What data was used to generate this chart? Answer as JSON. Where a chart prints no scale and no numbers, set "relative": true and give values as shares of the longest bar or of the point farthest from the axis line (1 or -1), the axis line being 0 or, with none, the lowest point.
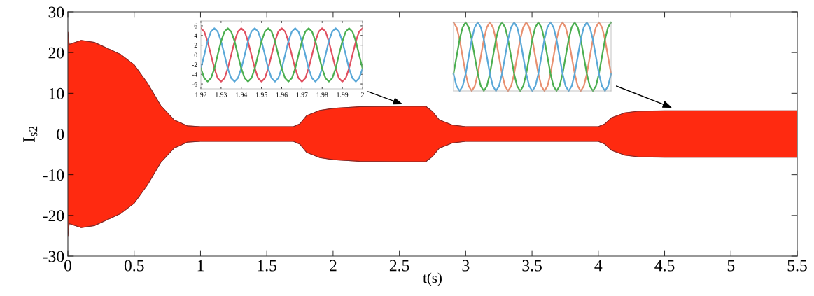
{
  "chart_data": [
    {
      "type": "area",
      "xlabel": "t(s)",
      "ylabel": "I$_{s2}$",
      "xlim": [
        0,
        5.5
      ],
      "ylim": [
        -30,
        30
      ],
      "xticks": [
        0,
        0.5,
        1,
        1.5,
        2,
        2.5,
        3,
        3.5,
        4,
        4.5,
        5,
        5.5
      ],
      "yticks": [
        -30,
        -20,
        -10,
        0,
        10,
        20,
        30
      ],
      "grid": false,
      "x": [
        0,
        0.01,
        0.1,
        0.2,
        0.3,
        0.4,
        0.5,
        0.6,
        0.7,
        0.8,
        0.9,
        1.0,
        1.7,
        1.75,
        1.8,
        1.9,
        2.0,
        2.2,
        2.5,
        2.7,
        2.75,
        2.8,
        2.9,
        3.0,
        4.0,
        4.05,
        4.1,
        4.2,
        4.3,
        4.5,
        5.5
      ],
      "series": [
        {
          "color": "#ff2a10",
          "values": [
            25,
            22,
            23,
            22.5,
            21,
            19.5,
            17,
            12.5,
            7,
            3.5,
            2,
            1.8,
            1.8,
            2.5,
            4.5,
            5.8,
            6.3,
            6.7,
            6.8,
            6.8,
            5.5,
            3.5,
            2.2,
            1.8,
            1.8,
            2.5,
            4,
            5.2,
            5.6,
            5.7,
            5.7
          ]
        },
        {
          "color": "#ff2a10",
          "values": [
            -25,
            -22,
            -23,
            -22.5,
            -21,
            -19.5,
            -17,
            -12.5,
            -7,
            -3.5,
            -2,
            -1.8,
            -1.8,
            -2.5,
            -4.5,
            -5.8,
            -6.3,
            -6.7,
            -6.8,
            -6.8,
            -5.5,
            -3.5,
            -2.2,
            -1.8,
            -1.8,
            -2.5,
            -4,
            -5.2,
            -5.6,
            -5.7,
            -5.7
          ]
        }
      ]
    },
    {
      "type": "line",
      "xlim": [
        1.92,
        2
      ],
      "ylim": [
        -7,
        7
      ],
      "grid": false,
      "xticks": [
        1.92,
        1.93,
        1.94,
        1.95,
        1.96,
        1.97,
        1.98,
        1.99,
        2
      ],
      "yticks": [
        -6,
        -4,
        -2,
        0,
        2,
        4,
        6
      ],
      "x": [
        1.92,
        1.9217,
        1.9233,
        1.925,
        1.9267,
        1.9283,
        1.93,
        1.9317,
        1.9333,
        1.935,
        1.9367,
        1.9383,
        1.94,
        1.9417,
        1.9433,
        1.945,
        1.9467,
        1.9483,
        1.95,
        1.9517,
        1.9533,
        1.955,
        1.9567,
        1.9583,
        1.96,
        1.9617,
        1.9633,
        1.965,
        1.9667,
        1.9683,
        1.97,
        1.9717,
        1.9733,
        1.975,
        1.9767,
        1.9783,
        1.98,
        1.9817,
        1.9833,
        1.985,
        1.9867,
        1.9883,
        1.99,
        1.9917,
        1.9933,
        1.995,
        1.9967,
        1.9983,
        2.0
      ],
      "series": [
        {
          "color": "#e05060",
          "values": [
            5.5,
            4.8,
            2.8,
            0,
            -2.8,
            -4.8,
            -5.5,
            -4.8,
            -2.8,
            0,
            2.8,
            4.8,
            5.5,
            4.8,
            2.8,
            0,
            -2.8,
            -4.8,
            -5.5,
            -4.8,
            -2.8,
            0,
            2.8,
            4.8,
            5.5,
            4.8,
            2.8,
            0,
            -2.8,
            -4.8,
            -5.5,
            -4.8,
            -2.8,
            0,
            2.8,
            4.8,
            5.5,
            4.8,
            2.8,
            0,
            -2.8,
            -4.8,
            -5.5,
            -4.8,
            -2.8,
            0,
            2.8,
            4.8,
            5.5
          ]
        },
        {
          "color": "#5aa8d8",
          "values": [
            -2.8,
            0,
            2.8,
            4.8,
            5.5,
            4.8,
            2.8,
            0,
            -2.8,
            -4.8,
            -5.5,
            -4.8,
            -2.8,
            0,
            2.8,
            4.8,
            5.5,
            4.8,
            2.8,
            0,
            -2.8,
            -4.8,
            -5.5,
            -4.8,
            -2.8,
            0,
            2.8,
            4.8,
            5.5,
            4.8,
            2.8,
            0,
            -2.8,
            -4.8,
            -5.5,
            -4.8,
            -2.8,
            0,
            2.8,
            4.8,
            5.5,
            4.8,
            2.8,
            0,
            -2.8,
            -4.8,
            -5.5,
            -4.8,
            -2.8
          ]
        },
        {
          "color": "#4caf50",
          "values": [
            -2.8,
            -4.8,
            -5.5,
            -4.8,
            -2.8,
            0,
            2.8,
            4.8,
            5.5,
            4.8,
            2.8,
            0,
            -2.8,
            -4.8,
            -5.5,
            -4.8,
            -2.8,
            0,
            2.8,
            4.8,
            5.5,
            4.8,
            2.8,
            0,
            -2.8,
            -4.8,
            -5.5,
            -4.8,
            -2.8,
            0,
            2.8,
            4.8,
            5.5,
            4.8,
            2.8,
            0,
            -2.8,
            -4.8,
            -5.5,
            -4.8,
            -2.8,
            0,
            2.8,
            4.8,
            5.5,
            4.8,
            2.8,
            0,
            -2.8
          ]
        }
      ]
    },
    {
      "type": "line",
      "relative": true,
      "grid": false,
      "categories": [
        null,
        null,
        null,
        null,
        null,
        null,
        null,
        null,
        null,
        null,
        null,
        null,
        null,
        null,
        null,
        null,
        null,
        null,
        null,
        null,
        null,
        null,
        null,
        null,
        null,
        null,
        null,
        null,
        null,
        null,
        null,
        null,
        null,
        null,
        null,
        null,
        null,
        null,
        null,
        null,
        null,
        null,
        null,
        null,
        null,
        null,
        null,
        null,
        null,
        null,
        null,
        null,
        null
      ],
      "series": [
        {
          "color": "#e89070",
          "values": [
            1,
            0.93,
            0.75,
            0.5,
            0.25,
            0.07,
            0,
            0.07,
            0.25,
            0.5,
            0.75,
            0.93,
            1,
            0.93,
            0.75,
            0.5,
            0.25,
            0.07,
            0,
            0.07,
            0.25,
            0.5,
            0.75,
            0.93,
            1,
            0.93,
            0.75,
            0.5,
            0.25,
            0.07,
            0,
            0.07,
            0.25,
            0.5,
            0.75,
            0.93,
            1,
            0.93,
            0.75,
            0.5,
            0.25,
            0.07,
            0,
            0.07,
            0.25,
            0.5,
            0.75,
            0.93,
            1,
            0.93,
            0.75,
            0.5,
            0.25
          ]
        },
        {
          "color": "#4caf50",
          "values": [
            0.25,
            0.5,
            0.75,
            0.93,
            1,
            0.93,
            0.75,
            0.5,
            0.25,
            0.07,
            0,
            0.07,
            0.25,
            0.5,
            0.75,
            0.93,
            1,
            0.93,
            0.75,
            0.5,
            0.25,
            0.07,
            0,
            0.07,
            0.25,
            0.5,
            0.75,
            0.93,
            1,
            0.93,
            0.75,
            0.5,
            0.25,
            0.07,
            0,
            0.07,
            0.25,
            0.5,
            0.75,
            0.93,
            1,
            0.93,
            0.75,
            0.5,
            0.25,
            0.07,
            0,
            0.07,
            0.25,
            0.5,
            0.75,
            0.93,
            1
          ]
        },
        {
          "color": "#5aa8d8",
          "values": [
            0.25,
            0.07,
            0,
            0.07,
            0.25,
            0.5,
            0.75,
            0.93,
            1,
            0.93,
            0.75,
            0.5,
            0.25,
            0.07,
            0,
            0.07,
            0.25,
            0.5,
            0.75,
            0.93,
            1,
            0.93,
            0.75,
            0.5,
            0.25,
            0.07,
            0,
            0.07,
            0.25,
            0.5,
            0.75,
            0.93,
            1,
            0.93,
            0.75,
            0.5,
            0.25,
            0.07,
            0,
            0.07,
            0.25,
            0.5,
            0.75,
            0.93,
            1,
            0.93,
            0.75,
            0.5,
            0.25,
            0.07,
            0,
            0.07,
            0.25
          ]
        }
      ]
    }
  ]
}
